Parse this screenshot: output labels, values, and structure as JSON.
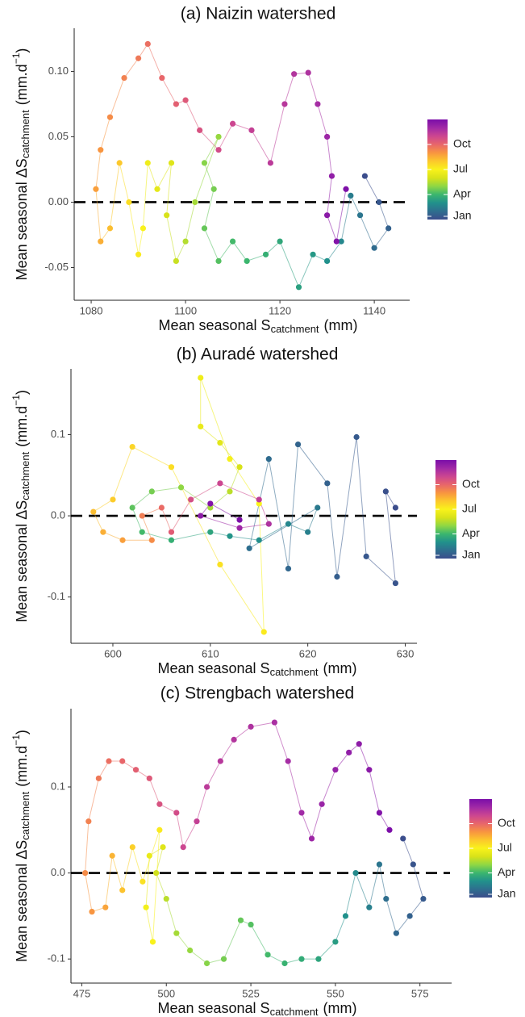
{
  "chart_data": [
    {
      "type": "scatter",
      "title": "(a) Naizin watershed",
      "x_label": {
        "text": "Mean seasonal S",
        "sub": "catchment",
        "unit": "(mm)"
      },
      "y_label": {
        "text": "Mean seasonal ΔS",
        "sub": "catchment",
        "unit": "(mm.d",
        "sup": "−1",
        "end": ")"
      },
      "xlim": [
        1076.4,
        1147.5
      ],
      "ylim": [
        -0.075,
        0.133
      ],
      "xticks": [
        1080,
        1100,
        1120,
        1140
      ],
      "yticks": [
        -0.05,
        {
          "value": 0,
          "label": "0.00"
        },
        0.05,
        {
          "value": 0.1,
          "label": "0.10"
        }
      ],
      "hline": 0,
      "x": [
        1138,
        1141,
        1143,
        1140,
        1137,
        1135,
        1133,
        1130,
        1127,
        1124,
        1120,
        1117,
        1113,
        1110,
        1107,
        1104,
        1106,
        1104,
        1107,
        1102,
        1100,
        1098,
        1096,
        1097,
        1094,
        1092,
        1091,
        1090,
        1088,
        1086,
        1084,
        1082,
        1081,
        1082,
        1084,
        1087,
        1090,
        1092,
        1095,
        1098,
        1100,
        1103,
        1107,
        1110,
        1114,
        1118,
        1121,
        1123,
        1126,
        1128,
        1130,
        1131,
        1130,
        1132,
        1134
      ],
      "y": [
        0.02,
        0,
        -0.02,
        -0.035,
        -0.01,
        0.005,
        -0.03,
        -0.045,
        -0.04,
        -0.065,
        -0.03,
        -0.04,
        -0.045,
        -0.03,
        -0.045,
        -0.02,
        0.01,
        0.03,
        0.05,
        0,
        -0.03,
        -0.045,
        -0.01,
        0.03,
        0.01,
        0.03,
        -0.02,
        -0.04,
        0,
        0.03,
        -0.02,
        -0.03,
        0.01,
        0.04,
        0.065,
        0.095,
        0.11,
        0.121,
        0.095,
        0.075,
        0.078,
        0.055,
        0.04,
        0.06,
        0.055,
        0.03,
        0.075,
        0.098,
        0.099,
        0.075,
        0.05,
        0.02,
        -0.01,
        -0.03,
        0.01
      ],
      "c": [
        1,
        1.3,
        1.6,
        1.9,
        2.2,
        2.4,
        2.7,
        3,
        3.2,
        3.4,
        3.6,
        3.8,
        4,
        4.1,
        4.3,
        4.5,
        4.7,
        4.9,
        5.1,
        5.3,
        5.5,
        5.8,
        6,
        6.2,
        6.4,
        6.7,
        7,
        7.2,
        7.5,
        8,
        8.2,
        8.5,
        8.8,
        9,
        9.2,
        9.4,
        9.6,
        9.8,
        10,
        10.2,
        10.4,
        10.6,
        10.8,
        11,
        11.2,
        11.4,
        11.5,
        11.6,
        11.7,
        11.9,
        12.1,
        12.4,
        12.6,
        12.8,
        12.9
      ],
      "colorbar": {
        "lim": [
          1,
          13
        ],
        "ticks": [
          {
            "value": 1,
            "label": "Jan"
          },
          {
            "value": 4,
            "label": "Apr"
          },
          {
            "value": 7,
            "label": "Jul"
          },
          {
            "value": 10,
            "label": "Oct"
          }
        ],
        "colors": [
          "#3b4d8c",
          "#2e6e8e",
          "#21918c",
          "#3bb66e",
          "#8fd744",
          "#d8e219",
          "#f9f21b",
          "#fcc82c",
          "#f89540",
          "#e8666a",
          "#cc4690",
          "#a12aa6",
          "#7a0da8"
        ]
      }
    },
    {
      "type": "scatter",
      "title": "(b) Auradé watershed",
      "x_label": {
        "text": "Mean seasonal S",
        "sub": "catchment",
        "unit": "(mm)"
      },
      "y_label": {
        "text": "Mean seasonal ΔS",
        "sub": "catchment",
        "unit": "(mm.d",
        "sup": "−1",
        "end": ")"
      },
      "xlim": [
        595.7,
        631.2
      ],
      "ylim": [
        -0.157,
        0.181
      ],
      "xticks": [
        600,
        610,
        620,
        630
      ],
      "yticks": [
        -0.1,
        {
          "value": 0,
          "label": "0.0"
        },
        0.1
      ],
      "hline": 0,
      "x": [
        629,
        628,
        629,
        626,
        625,
        623,
        622,
        619,
        618,
        616,
        614,
        621,
        620,
        618,
        615,
        612,
        610,
        606,
        603,
        602,
        604,
        607,
        610,
        612,
        613,
        611,
        609,
        609,
        612,
        615,
        615.5,
        611,
        606,
        602,
        600,
        598,
        599,
        601,
        604,
        603,
        605,
        606,
        608,
        611,
        615,
        616,
        613,
        609,
        610,
        613
      ],
      "y": [
        0.01,
        0.03,
        -0.083,
        -0.05,
        0.097,
        -0.075,
        0.04,
        0.088,
        -0.065,
        0.07,
        -0.04,
        0.01,
        -0.02,
        -0.01,
        -0.03,
        -0.025,
        -0.02,
        -0.03,
        -0.02,
        0.01,
        0.03,
        0.035,
        0.01,
        0.03,
        0.06,
        0.09,
        0.11,
        0.17,
        0.07,
        0.015,
        -0.143,
        -0.06,
        0.06,
        0.085,
        0.02,
        0.005,
        -0.02,
        -0.03,
        -0.03,
        0,
        0.01,
        -0.02,
        0.02,
        0.04,
        0.02,
        -0.01,
        -0.015,
        0,
        0.015,
        -0.005
      ],
      "c": [
        1,
        1.1,
        1.2,
        1.3,
        1.4,
        1.5,
        1.6,
        1.7,
        1.8,
        1.9,
        2,
        2.3,
        2.5,
        2.7,
        2.9,
        3.1,
        3.5,
        3.8,
        4.1,
        4.4,
        4.7,
        5,
        5.3,
        5.6,
        6,
        6.3,
        6.5,
        6.7,
        6.9,
        7,
        7.2,
        7.4,
        7.5,
        7.7,
        7.9,
        8.2,
        8.5,
        8.8,
        9.2,
        9.5,
        9.9,
        10.3,
        10.7,
        11,
        11.3,
        11.7,
        12.1,
        12.5,
        12.8,
        12.95
      ],
      "colorbar": {
        "lim": [
          1,
          13
        ],
        "ticks": [
          {
            "value": 1,
            "label": "Jan"
          },
          {
            "value": 4,
            "label": "Apr"
          },
          {
            "value": 7,
            "label": "Jul"
          },
          {
            "value": 10,
            "label": "Oct"
          }
        ],
        "colors": [
          "#3b4d8c",
          "#2e6e8e",
          "#21918c",
          "#3bb66e",
          "#8fd744",
          "#d8e219",
          "#f9f21b",
          "#fcc82c",
          "#f89540",
          "#e8666a",
          "#cc4690",
          "#a12aa6",
          "#7a0da8"
        ]
      }
    },
    {
      "type": "scatter",
      "title": "(c) Strengbach watershed",
      "x_label": {
        "text": "Mean seasonal S",
        "sub": "catchment",
        "unit": "(mm)"
      },
      "y_label": {
        "text": "Mean seasonal ΔS",
        "sub": "catchment",
        "unit": "(mm.d",
        "sup": "−1",
        "end": ")"
      },
      "xlim": [
        471.8,
        592
      ],
      "ylim": [
        -0.128,
        0.191
      ],
      "xticks": [
        475,
        500,
        525,
        550,
        575
      ],
      "yticks": [
        -0.1,
        {
          "value": 0,
          "label": "0.0"
        },
        0.1
      ],
      "hline": 0,
      "x": [
        570,
        573,
        576,
        572,
        568,
        565,
        563,
        560,
        556,
        553,
        550,
        545,
        540,
        535,
        530,
        525,
        522,
        517,
        512,
        507,
        503,
        500,
        497,
        499,
        495,
        494,
        496,
        498,
        493,
        490,
        487,
        484,
        482,
        478,
        476,
        477,
        480,
        483,
        487,
        491,
        495,
        498,
        503,
        505,
        509,
        512,
        516,
        520,
        525,
        532,
        536,
        540,
        543,
        546,
        550,
        554,
        557,
        560,
        563,
        566
      ],
      "y": [
        0.04,
        0.01,
        -0.03,
        -0.05,
        -0.07,
        -0.03,
        0.01,
        -0.04,
        0,
        -0.05,
        -0.08,
        -0.1,
        -0.1,
        -0.105,
        -0.095,
        -0.06,
        -0.055,
        -0.1,
        -0.105,
        -0.09,
        -0.07,
        -0.03,
        0,
        0.03,
        0.02,
        -0.04,
        -0.08,
        0.05,
        -0.01,
        0.03,
        -0.02,
        0.02,
        -0.04,
        -0.045,
        0,
        0.06,
        0.11,
        0.13,
        0.13,
        0.12,
        0.11,
        0.08,
        0.07,
        0.03,
        0.06,
        0.1,
        0.13,
        0.155,
        0.17,
        0.175,
        0.13,
        0.07,
        0.04,
        0.08,
        0.12,
        0.14,
        0.15,
        0.12,
        0.07,
        0.05
      ],
      "c": [
        1,
        1.2,
        1.4,
        1.6,
        1.8,
        2,
        2.2,
        2.5,
        2.8,
        3,
        3.3,
        3.5,
        3.7,
        3.9,
        4.1,
        4.3,
        4.5,
        4.7,
        4.9,
        5.1,
        5.3,
        5.6,
        5.9,
        6.2,
        6.5,
        6.8,
        7,
        7.2,
        7.4,
        7.8,
        8.1,
        8.4,
        8.7,
        9,
        9.2,
        9.4,
        9.6,
        9.8,
        10,
        10.2,
        10.4,
        10.6,
        10.8,
        11,
        11.2,
        11.4,
        11.5,
        11.6,
        11.7,
        11.8,
        11.9,
        12,
        12.1,
        12.2,
        12.3,
        12.4,
        12.5,
        12.6,
        12.8,
        12.95
      ],
      "colorbar": {
        "lim": [
          1,
          13
        ],
        "ticks": [
          {
            "value": 1,
            "label": "Jan"
          },
          {
            "value": 4,
            "label": "Apr"
          },
          {
            "value": 7,
            "label": "Jul"
          },
          {
            "value": 10,
            "label": "Oct"
          }
        ],
        "colors": [
          "#3b4d8c",
          "#2e6e8e",
          "#21918c",
          "#3bb66e",
          "#8fd744",
          "#d8e219",
          "#f9f21b",
          "#fcc82c",
          "#f89540",
          "#e8666a",
          "#cc4690",
          "#a12aa6",
          "#7a0da8"
        ]
      }
    }
  ]
}
